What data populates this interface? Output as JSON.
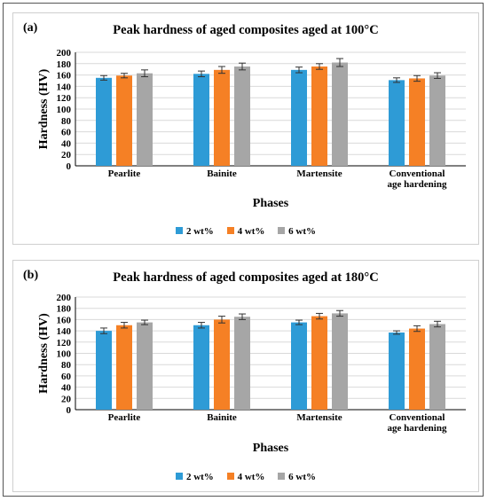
{
  "colors": {
    "2wt": "#2E9BD6",
    "4wt": "#F58025",
    "6wt": "#A6A6A6"
  },
  "chart_data": [
    {
      "type": "bar",
      "panel_label": "(a)",
      "title": "Peak hardness of aged composites aged at 100°C",
      "xlabel": "Phases",
      "ylabel": "Hardness (HV)",
      "ylim": [
        0,
        200
      ],
      "yticks": [
        0,
        20,
        40,
        60,
        80,
        100,
        120,
        140,
        160,
        180,
        200
      ],
      "grid": true,
      "legend": "bottom",
      "categories": [
        "Pearlite",
        "Bainite",
        "Martensite",
        [
          "Conventional",
          "age hardening"
        ]
      ],
      "series": [
        {
          "name": "2 wt%",
          "values": [
            155,
            162,
            169,
            151
          ],
          "errors": [
            4,
            5,
            5,
            4
          ]
        },
        {
          "name": "4 wt%",
          "values": [
            159,
            169,
            175,
            154
          ],
          "errors": [
            4,
            6,
            5,
            5
          ]
        },
        {
          "name": "6 wt%",
          "values": [
            163,
            175,
            182,
            159
          ],
          "errors": [
            6,
            6,
            7,
            5
          ]
        }
      ]
    },
    {
      "type": "bar",
      "panel_label": "(b)",
      "title": "Peak hardness of aged composites aged at 180°C",
      "xlabel": "Phases",
      "ylabel": "Hardness (HV)",
      "ylim": [
        0,
        200
      ],
      "yticks": [
        0,
        20,
        40,
        60,
        80,
        100,
        120,
        140,
        160,
        180,
        200
      ],
      "grid": true,
      "legend": "bottom",
      "categories": [
        "Pearlite",
        "Bainite",
        "Martensite",
        [
          "Conventional",
          "age hardening"
        ]
      ],
      "series": [
        {
          "name": "2 wt%",
          "values": [
            140,
            150,
            155,
            137
          ],
          "errors": [
            5,
            5,
            4,
            3
          ]
        },
        {
          "name": "4 wt%",
          "values": [
            150,
            160,
            166,
            144
          ],
          "errors": [
            5,
            6,
            5,
            5
          ]
        },
        {
          "name": "6 wt%",
          "values": [
            155,
            165,
            171,
            152
          ],
          "errors": [
            4,
            5,
            5,
            5
          ]
        }
      ]
    }
  ]
}
